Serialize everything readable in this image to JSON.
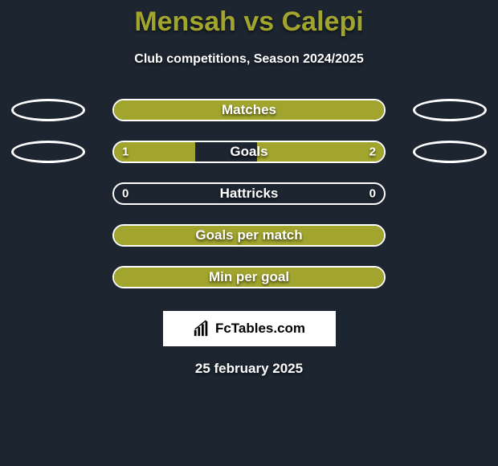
{
  "title": "Mensah vs Calepi",
  "subtitle": "Club competitions, Season 2024/2025",
  "colors": {
    "background": "#1c2530",
    "accent": "#a2a52d",
    "text": "#ffffff",
    "badge_bg": "#ffffff",
    "badge_text": "#000000"
  },
  "rows": [
    {
      "label": "Matches",
      "left_value": "",
      "right_value": "",
      "left_fill_pct": 100,
      "right_fill_pct": 0,
      "show_ellipses": true,
      "ellipse_fill": false
    },
    {
      "label": "Goals",
      "left_value": "1",
      "right_value": "2",
      "left_fill_pct": 30,
      "right_fill_pct": 47,
      "show_ellipses": true,
      "ellipse_fill": false
    },
    {
      "label": "Hattricks",
      "left_value": "0",
      "right_value": "0",
      "left_fill_pct": 0,
      "right_fill_pct": 0,
      "show_ellipses": false,
      "ellipse_fill": false
    },
    {
      "label": "Goals per match",
      "left_value": "",
      "right_value": "",
      "left_fill_pct": 100,
      "right_fill_pct": 0,
      "show_ellipses": false,
      "ellipse_fill": false
    },
    {
      "label": "Min per goal",
      "left_value": "",
      "right_value": "",
      "left_fill_pct": 100,
      "right_fill_pct": 0,
      "show_ellipses": false,
      "ellipse_fill": false
    }
  ],
  "footer": {
    "icon": "chart-icon",
    "site_name": "FcTables.com"
  },
  "date": "25 february 2025"
}
